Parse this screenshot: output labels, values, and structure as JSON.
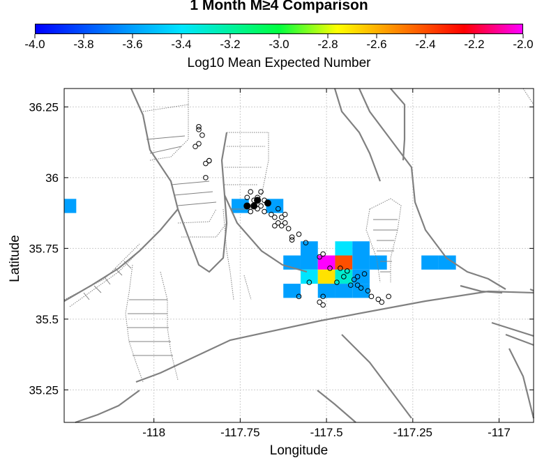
{
  "chart_data": {
    "type": "heatmap",
    "title": "1 Month M≥4 Comparison",
    "colorbar": {
      "label": "Log10 Mean Expected Number",
      "range": [
        -4.0,
        -2.0
      ],
      "ticks": [
        "-4.0",
        "-3.8",
        "-3.6",
        "-3.4",
        "-3.2",
        "-3.0",
        "-2.8",
        "-2.6",
        "-2.4",
        "-2.2",
        "-2.0"
      ],
      "colors": [
        "#0000ff",
        "#00a0ff",
        "#00e5ff",
        "#00ff40",
        "#ffff00",
        "#ff8000",
        "#ff0000",
        "#ff00ff"
      ]
    },
    "xlabel": "Longitude",
    "ylabel": "Latitude",
    "xlim": [
      -118.26,
      -116.9
    ],
    "ylim": [
      35.135,
      36.315
    ],
    "xticks": [
      -118,
      -117.75,
      -117.5,
      -117.25,
      -117
    ],
    "xtick_labels": [
      "-118",
      "-117.75",
      "-117.5",
      "-117.25",
      "-117"
    ],
    "yticks": [
      35.25,
      35.5,
      35.75,
      36,
      36.25
    ],
    "ytick_labels": [
      "35.25",
      "35.5",
      "35.75",
      "36",
      "36.25"
    ],
    "grid": true,
    "cell_size": 0.05,
    "cells": [
      {
        "lon": -118.25,
        "lat": 35.9,
        "value": -3.6
      },
      {
        "lon": -117.75,
        "lat": 35.9,
        "value": -3.6
      },
      {
        "lon": -117.65,
        "lat": 35.9,
        "value": -3.6
      },
      {
        "lon": -117.55,
        "lat": 35.75,
        "value": -3.6
      },
      {
        "lon": -117.45,
        "lat": 35.75,
        "value": -3.4
      },
      {
        "lon": -117.4,
        "lat": 35.75,
        "value": -3.6
      },
      {
        "lon": -117.6,
        "lat": 35.7,
        "value": -3.6
      },
      {
        "lon": -117.55,
        "lat": 35.7,
        "value": -3.6
      },
      {
        "lon": -117.5,
        "lat": 35.7,
        "value": -2.0
      },
      {
        "lon": -117.45,
        "lat": 35.7,
        "value": -2.4
      },
      {
        "lon": -117.4,
        "lat": 35.7,
        "value": -3.6
      },
      {
        "lon": -117.35,
        "lat": 35.7,
        "value": -3.6
      },
      {
        "lon": -117.2,
        "lat": 35.7,
        "value": -3.6
      },
      {
        "lon": -117.15,
        "lat": 35.7,
        "value": -3.6
      },
      {
        "lon": -117.55,
        "lat": 35.65,
        "value": -3.4
      },
      {
        "lon": -117.5,
        "lat": 35.65,
        "value": -2.7
      },
      {
        "lon": -117.45,
        "lat": 35.65,
        "value": -3.3
      },
      {
        "lon": -117.4,
        "lat": 35.65,
        "value": -3.6
      },
      {
        "lon": -117.6,
        "lat": 35.6,
        "value": -3.6
      },
      {
        "lon": -117.5,
        "lat": 35.6,
        "value": -3.6
      },
      {
        "lon": -117.45,
        "lat": 35.6,
        "value": -3.6
      },
      {
        "lon": -117.4,
        "lat": 35.6,
        "value": -3.6
      }
    ],
    "earthquakes_open": [
      [
        -117.87,
        36.18
      ],
      [
        -117.87,
        36.17
      ],
      [
        -117.86,
        36.15
      ],
      [
        -117.87,
        36.12
      ],
      [
        -117.88,
        36.11
      ],
      [
        -117.84,
        36.06
      ],
      [
        -117.85,
        36.05
      ],
      [
        -117.84,
        36.06
      ],
      [
        -117.85,
        36.0
      ],
      [
        -117.72,
        35.95
      ],
      [
        -117.69,
        35.95
      ],
      [
        -117.73,
        35.93
      ],
      [
        -117.71,
        35.92
      ],
      [
        -117.7,
        35.93
      ],
      [
        -117.68,
        35.92
      ],
      [
        -117.67,
        35.91
      ],
      [
        -117.73,
        35.9
      ],
      [
        -117.71,
        35.9
      ],
      [
        -117.69,
        35.9
      ],
      [
        -117.7,
        35.89
      ],
      [
        -117.72,
        35.88
      ],
      [
        -117.68,
        35.88
      ],
      [
        -117.66,
        35.87
      ],
      [
        -117.64,
        35.89
      ],
      [
        -117.62,
        35.87
      ],
      [
        -117.65,
        35.86
      ],
      [
        -117.63,
        35.86
      ],
      [
        -117.64,
        35.84
      ],
      [
        -117.62,
        35.84
      ],
      [
        -117.63,
        35.83
      ],
      [
        -117.61,
        35.82
      ],
      [
        -117.65,
        35.83
      ],
      [
        -117.6,
        35.79
      ],
      [
        -117.58,
        35.8
      ],
      [
        -117.6,
        35.78
      ],
      [
        -117.56,
        35.77
      ],
      [
        -117.51,
        35.73
      ],
      [
        -117.52,
        35.72
      ],
      [
        -117.49,
        35.68
      ],
      [
        -117.46,
        35.68
      ],
      [
        -117.44,
        35.67
      ],
      [
        -117.45,
        35.65
      ],
      [
        -117.42,
        35.64
      ],
      [
        -117.47,
        35.63
      ],
      [
        -117.41,
        35.62
      ],
      [
        -117.4,
        35.61
      ],
      [
        -117.43,
        35.62
      ],
      [
        -117.39,
        35.66
      ],
      [
        -117.38,
        35.6
      ],
      [
        -117.41,
        35.65
      ],
      [
        -117.37,
        35.58
      ],
      [
        -117.35,
        35.57
      ],
      [
        -117.34,
        35.56
      ],
      [
        -117.32,
        35.58
      ],
      [
        -117.51,
        35.58
      ],
      [
        -117.52,
        35.56
      ],
      [
        -117.51,
        35.55
      ],
      [
        -117.58,
        35.58
      ],
      [
        -117.55,
        35.63
      ]
    ],
    "earthquakes_filled": [
      [
        -117.71,
        35.9
      ],
      [
        -117.73,
        35.9
      ],
      [
        -117.67,
        35.91
      ],
      [
        -117.7,
        35.92
      ]
    ]
  }
}
